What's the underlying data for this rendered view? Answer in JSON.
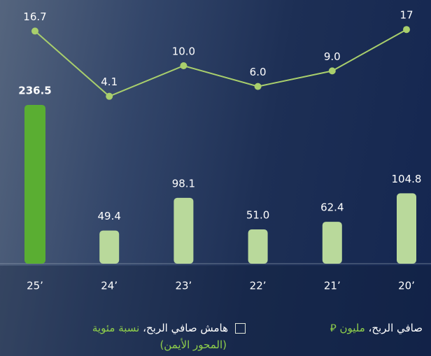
{
  "chart_data": {
    "type": "bar_line",
    "categories": [
      "25’",
      "24’",
      "23’",
      "22’",
      "21’",
      "20’"
    ],
    "series": [
      {
        "name": "صافي الربح،",
        "unit": "مليون ⃁",
        "type": "bar",
        "color": "#b9d99b",
        "highlight_color": "#5aae32",
        "values": [
          236.5,
          49.4,
          98.1,
          51.0,
          62.4,
          104.8
        ],
        "value_labels": [
          "236.5",
          "49.4",
          "98.1",
          "51.0",
          "62.4",
          "104.8"
        ]
      },
      {
        "name": "هامش صافي الربح،",
        "unit": "نسبة مئوية",
        "axis_note": "(المحور الأيمن)",
        "type": "line",
        "axis": "y2",
        "color": "#a9cf6c",
        "values": [
          16.7,
          4.1,
          10.0,
          6.0,
          9.0,
          17
        ],
        "value_labels": [
          "16.7",
          "4.1",
          "10.0",
          "6.0",
          "9.0",
          "17"
        ]
      }
    ],
    "ylim": [
      0,
      250
    ],
    "y2lim": [
      0,
      20
    ]
  }
}
